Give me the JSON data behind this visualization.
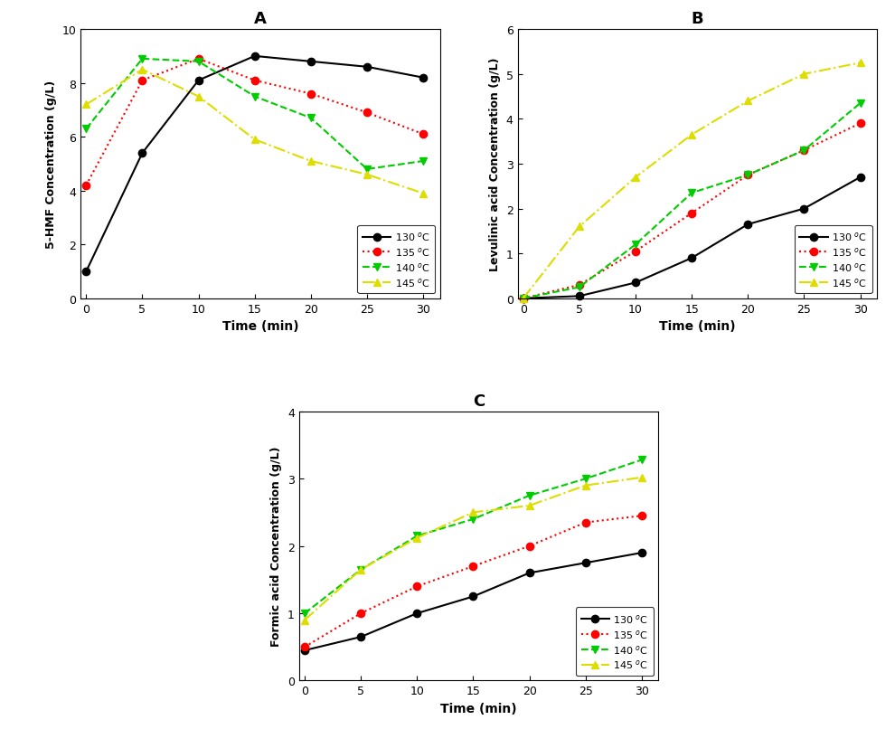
{
  "time": [
    0,
    5,
    10,
    15,
    20,
    25,
    30
  ],
  "panel_A": {
    "title": "A",
    "ylabel": "5-HMF Concentration (g/L)",
    "xlabel": "Time (min)",
    "ylim": [
      0,
      10
    ],
    "yticks": [
      0,
      2,
      4,
      6,
      8,
      10
    ],
    "series": {
      "130": {
        "color": "#000000",
        "linestyle": "-",
        "marker": "o",
        "values": [
          1.0,
          5.4,
          8.1,
          9.0,
          8.8,
          8.6,
          8.2
        ]
      },
      "135": {
        "color": "#ff0000",
        "linestyle": ":",
        "marker": "o",
        "values": [
          4.2,
          8.1,
          8.9,
          8.1,
          7.6,
          6.9,
          6.1
        ]
      },
      "140": {
        "color": "#00cc00",
        "linestyle": "--",
        "marker": "v",
        "values": [
          6.3,
          8.9,
          8.8,
          7.5,
          6.7,
          4.8,
          5.1
        ]
      },
      "145": {
        "color": "#dddd00",
        "linestyle": "-.",
        "marker": "^",
        "values": [
          7.2,
          8.5,
          7.5,
          5.9,
          5.1,
          4.6,
          3.9
        ]
      }
    }
  },
  "panel_B": {
    "title": "B",
    "ylabel": "Levulinic acid Concentration (g/L)",
    "xlabel": "Time (min)",
    "ylim": [
      0,
      6
    ],
    "yticks": [
      0,
      1,
      2,
      3,
      4,
      5,
      6
    ],
    "series": {
      "130": {
        "color": "#000000",
        "linestyle": "-",
        "marker": "o",
        "values": [
          0.0,
          0.05,
          0.35,
          0.9,
          1.65,
          2.0,
          2.7
        ]
      },
      "135": {
        "color": "#ff0000",
        "linestyle": ":",
        "marker": "o",
        "values": [
          0.0,
          0.3,
          1.05,
          1.9,
          2.75,
          3.3,
          3.9
        ]
      },
      "140": {
        "color": "#00cc00",
        "linestyle": "--",
        "marker": "v",
        "values": [
          0.0,
          0.25,
          1.2,
          2.35,
          2.75,
          3.3,
          4.35
        ]
      },
      "145": {
        "color": "#dddd00",
        "linestyle": "-.",
        "marker": "^",
        "values": [
          0.0,
          1.6,
          2.7,
          3.65,
          4.4,
          5.0,
          5.25
        ]
      }
    }
  },
  "panel_C": {
    "title": "C",
    "ylabel": "Formic acid Concentration (g/L)",
    "xlabel": "Time (min)",
    "ylim": [
      0,
      4
    ],
    "yticks": [
      0,
      1,
      2,
      3,
      4
    ],
    "series": {
      "130": {
        "color": "#000000",
        "linestyle": "-",
        "marker": "o",
        "values": [
          0.45,
          0.65,
          1.0,
          1.25,
          1.6,
          1.75,
          1.9
        ]
      },
      "135": {
        "color": "#ff0000",
        "linestyle": ":",
        "marker": "o",
        "values": [
          0.5,
          1.0,
          1.4,
          1.7,
          2.0,
          2.35,
          2.45
        ]
      },
      "140": {
        "color": "#00cc00",
        "linestyle": "--",
        "marker": "v",
        "values": [
          1.0,
          1.65,
          2.15,
          2.4,
          2.75,
          3.0,
          3.28
        ]
      },
      "145": {
        "color": "#dddd00",
        "linestyle": "-.",
        "marker": "^",
        "values": [
          0.9,
          1.65,
          2.12,
          2.5,
          2.6,
          2.9,
          3.02
        ]
      }
    }
  },
  "markersize": 6,
  "linewidth": 1.5,
  "bg_color": "#ffffff"
}
